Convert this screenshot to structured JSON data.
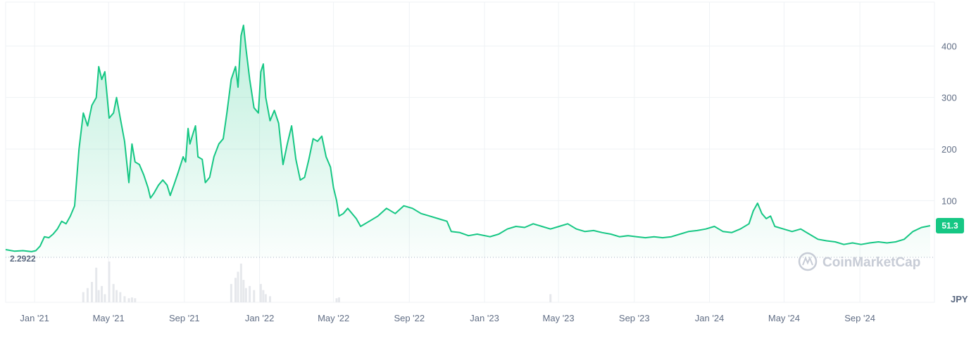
{
  "chart_data": {
    "type": "area",
    "currency": "JPY",
    "watermark": "CoinMarketCap",
    "baseline_label": "2.2922",
    "last_value_label": "51.3",
    "colors": {
      "line": "#16c784",
      "area_top": "#16c784",
      "grid": "#eff2f5",
      "volume": "#e6e8ec",
      "axis_text": "#616e85"
    },
    "x_tick_labels": [
      "Jan '21",
      "May '21",
      "Sep '21",
      "Jan '22",
      "May '22",
      "Sep '22",
      "Jan '23",
      "May '23",
      "Sep '23",
      "Jan '24",
      "May '24",
      "Sep '24"
    ],
    "x_tick_dates": [
      "2021-01-01",
      "2021-05-01",
      "2021-09-01",
      "2022-01-01",
      "2022-05-01",
      "2022-09-01",
      "2023-01-01",
      "2023-05-01",
      "2023-09-01",
      "2024-01-01",
      "2024-05-01",
      "2024-09-01"
    ],
    "y_ticks": [
      100,
      200,
      300,
      400
    ],
    "y_tick_labels": [
      "100",
      "200",
      "300",
      "400"
    ],
    "y_range": [
      -10,
      485
    ],
    "x_range": [
      "2020-11-15",
      "2024-12-31"
    ],
    "grid": true,
    "series": [
      {
        "values": [
          [
            "2020-11-15",
            5
          ],
          [
            "2020-11-29",
            2
          ],
          [
            "2020-12-13",
            3
          ],
          [
            "2020-12-27",
            1
          ],
          [
            "2021-01-03",
            3
          ],
          [
            "2021-01-10",
            12
          ],
          [
            "2021-01-17",
            30
          ],
          [
            "2021-01-24",
            28
          ],
          [
            "2021-01-31",
            35
          ],
          [
            "2021-02-07",
            45
          ],
          [
            "2021-02-14",
            60
          ],
          [
            "2021-02-21",
            55
          ],
          [
            "2021-02-28",
            70
          ],
          [
            "2021-03-07",
            90
          ],
          [
            "2021-03-14",
            200
          ],
          [
            "2021-03-21",
            270
          ],
          [
            "2021-03-28",
            245
          ],
          [
            "2021-04-04",
            285
          ],
          [
            "2021-04-11",
            300
          ],
          [
            "2021-04-15",
            360
          ],
          [
            "2021-04-20",
            335
          ],
          [
            "2021-04-25",
            350
          ],
          [
            "2021-05-02",
            260
          ],
          [
            "2021-05-09",
            270
          ],
          [
            "2021-05-14",
            300
          ],
          [
            "2021-05-20",
            260
          ],
          [
            "2021-05-27",
            215
          ],
          [
            "2021-06-03",
            135
          ],
          [
            "2021-06-08",
            210
          ],
          [
            "2021-06-13",
            175
          ],
          [
            "2021-06-20",
            170
          ],
          [
            "2021-06-27",
            150
          ],
          [
            "2021-07-04",
            125
          ],
          [
            "2021-07-08",
            105
          ],
          [
            "2021-07-14",
            115
          ],
          [
            "2021-07-21",
            130
          ],
          [
            "2021-07-28",
            140
          ],
          [
            "2021-08-04",
            130
          ],
          [
            "2021-08-09",
            110
          ],
          [
            "2021-08-15",
            130
          ],
          [
            "2021-08-22",
            155
          ],
          [
            "2021-08-30",
            185
          ],
          [
            "2021-09-03",
            175
          ],
          [
            "2021-09-07",
            240
          ],
          [
            "2021-09-10",
            210
          ],
          [
            "2021-09-15",
            230
          ],
          [
            "2021-09-19",
            245
          ],
          [
            "2021-09-23",
            185
          ],
          [
            "2021-09-30",
            180
          ],
          [
            "2021-10-05",
            135
          ],
          [
            "2021-10-12",
            145
          ],
          [
            "2021-10-19",
            185
          ],
          [
            "2021-10-27",
            210
          ],
          [
            "2021-11-03",
            220
          ],
          [
            "2021-11-09",
            270
          ],
          [
            "2021-11-16",
            335
          ],
          [
            "2021-11-23",
            360
          ],
          [
            "2021-11-27",
            320
          ],
          [
            "2021-12-02",
            420
          ],
          [
            "2021-12-06",
            440
          ],
          [
            "2021-12-10",
            395
          ],
          [
            "2021-12-16",
            335
          ],
          [
            "2021-12-23",
            280
          ],
          [
            "2021-12-30",
            270
          ],
          [
            "2022-01-03",
            350
          ],
          [
            "2022-01-07",
            365
          ],
          [
            "2022-01-11",
            300
          ],
          [
            "2022-01-18",
            255
          ],
          [
            "2022-01-25",
            275
          ],
          [
            "2022-02-01",
            250
          ],
          [
            "2022-02-08",
            170
          ],
          [
            "2022-02-15",
            210
          ],
          [
            "2022-02-22",
            245
          ],
          [
            "2022-03-01",
            180
          ],
          [
            "2022-03-08",
            140
          ],
          [
            "2022-03-15",
            145
          ],
          [
            "2022-03-22",
            180
          ],
          [
            "2022-03-29",
            220
          ],
          [
            "2022-04-05",
            215
          ],
          [
            "2022-04-12",
            225
          ],
          [
            "2022-04-19",
            185
          ],
          [
            "2022-04-26",
            165
          ],
          [
            "2022-05-01",
            125
          ],
          [
            "2022-05-06",
            100
          ],
          [
            "2022-05-10",
            70
          ],
          [
            "2022-05-17",
            75
          ],
          [
            "2022-05-24",
            85
          ],
          [
            "2022-06-07",
            65
          ],
          [
            "2022-06-14",
            50
          ],
          [
            "2022-06-28",
            60
          ],
          [
            "2022-07-12",
            70
          ],
          [
            "2022-07-26",
            85
          ],
          [
            "2022-08-09",
            75
          ],
          [
            "2022-08-23",
            90
          ],
          [
            "2022-09-06",
            85
          ],
          [
            "2022-09-20",
            75
          ],
          [
            "2022-10-04",
            70
          ],
          [
            "2022-10-18",
            65
          ],
          [
            "2022-11-01",
            60
          ],
          [
            "2022-11-08",
            40
          ],
          [
            "2022-11-22",
            38
          ],
          [
            "2022-12-06",
            32
          ],
          [
            "2022-12-20",
            35
          ],
          [
            "2023-01-10",
            30
          ],
          [
            "2023-01-24",
            35
          ],
          [
            "2023-02-07",
            45
          ],
          [
            "2023-02-21",
            50
          ],
          [
            "2023-03-07",
            48
          ],
          [
            "2023-03-21",
            55
          ],
          [
            "2023-04-04",
            50
          ],
          [
            "2023-04-18",
            45
          ],
          [
            "2023-05-02",
            50
          ],
          [
            "2023-05-16",
            55
          ],
          [
            "2023-05-30",
            45
          ],
          [
            "2023-06-13",
            40
          ],
          [
            "2023-06-27",
            42
          ],
          [
            "2023-07-11",
            38
          ],
          [
            "2023-07-25",
            35
          ],
          [
            "2023-08-08",
            30
          ],
          [
            "2023-08-22",
            32
          ],
          [
            "2023-09-05",
            30
          ],
          [
            "2023-09-19",
            28
          ],
          [
            "2023-10-03",
            30
          ],
          [
            "2023-10-17",
            28
          ],
          [
            "2023-10-31",
            30
          ],
          [
            "2023-11-14",
            35
          ],
          [
            "2023-11-28",
            40
          ],
          [
            "2023-12-12",
            42
          ],
          [
            "2023-12-26",
            45
          ],
          [
            "2024-01-09",
            50
          ],
          [
            "2024-01-23",
            40
          ],
          [
            "2024-02-06",
            38
          ],
          [
            "2024-02-20",
            45
          ],
          [
            "2024-03-05",
            55
          ],
          [
            "2024-03-12",
            80
          ],
          [
            "2024-03-19",
            95
          ],
          [
            "2024-03-26",
            75
          ],
          [
            "2024-04-02",
            65
          ],
          [
            "2024-04-09",
            70
          ],
          [
            "2024-04-16",
            50
          ],
          [
            "2024-04-30",
            45
          ],
          [
            "2024-05-14",
            40
          ],
          [
            "2024-05-28",
            45
          ],
          [
            "2024-06-11",
            35
          ],
          [
            "2024-06-25",
            25
          ],
          [
            "2024-07-09",
            22
          ],
          [
            "2024-07-23",
            20
          ],
          [
            "2024-08-06",
            15
          ],
          [
            "2024-08-20",
            18
          ],
          [
            "2024-09-03",
            15
          ],
          [
            "2024-09-17",
            18
          ],
          [
            "2024-10-01",
            20
          ],
          [
            "2024-10-15",
            18
          ],
          [
            "2024-10-29",
            20
          ],
          [
            "2024-11-12",
            25
          ],
          [
            "2024-11-26",
            40
          ],
          [
            "2024-12-10",
            48
          ],
          [
            "2024-12-24",
            51.3
          ]
        ]
      }
    ],
    "volume_bars": [
      [
        "2021-03-21",
        0.25
      ],
      [
        "2021-03-28",
        0.35
      ],
      [
        "2021-04-04",
        0.5
      ],
      [
        "2021-04-11",
        0.85
      ],
      [
        "2021-04-15",
        0.3
      ],
      [
        "2021-04-20",
        0.4
      ],
      [
        "2021-04-25",
        0.2
      ],
      [
        "2021-05-02",
        1.0
      ],
      [
        "2021-05-09",
        0.45
      ],
      [
        "2021-05-14",
        0.3
      ],
      [
        "2021-05-20",
        0.25
      ],
      [
        "2021-05-27",
        0.15
      ],
      [
        "2021-06-03",
        0.1
      ],
      [
        "2021-06-08",
        0.12
      ],
      [
        "2021-06-13",
        0.1
      ],
      [
        "2021-11-16",
        0.45
      ],
      [
        "2021-11-23",
        0.6
      ],
      [
        "2021-11-27",
        0.75
      ],
      [
        "2021-12-02",
        0.95
      ],
      [
        "2021-12-06",
        0.55
      ],
      [
        "2021-12-10",
        0.35
      ],
      [
        "2021-12-16",
        0.4
      ],
      [
        "2021-12-23",
        0.3
      ],
      [
        "2022-01-03",
        0.45
      ],
      [
        "2022-01-07",
        0.3
      ],
      [
        "2022-01-11",
        0.2
      ],
      [
        "2022-01-18",
        0.15
      ],
      [
        "2022-05-06",
        0.1
      ],
      [
        "2022-05-10",
        0.12
      ],
      [
        "2023-04-18",
        0.2
      ]
    ]
  }
}
